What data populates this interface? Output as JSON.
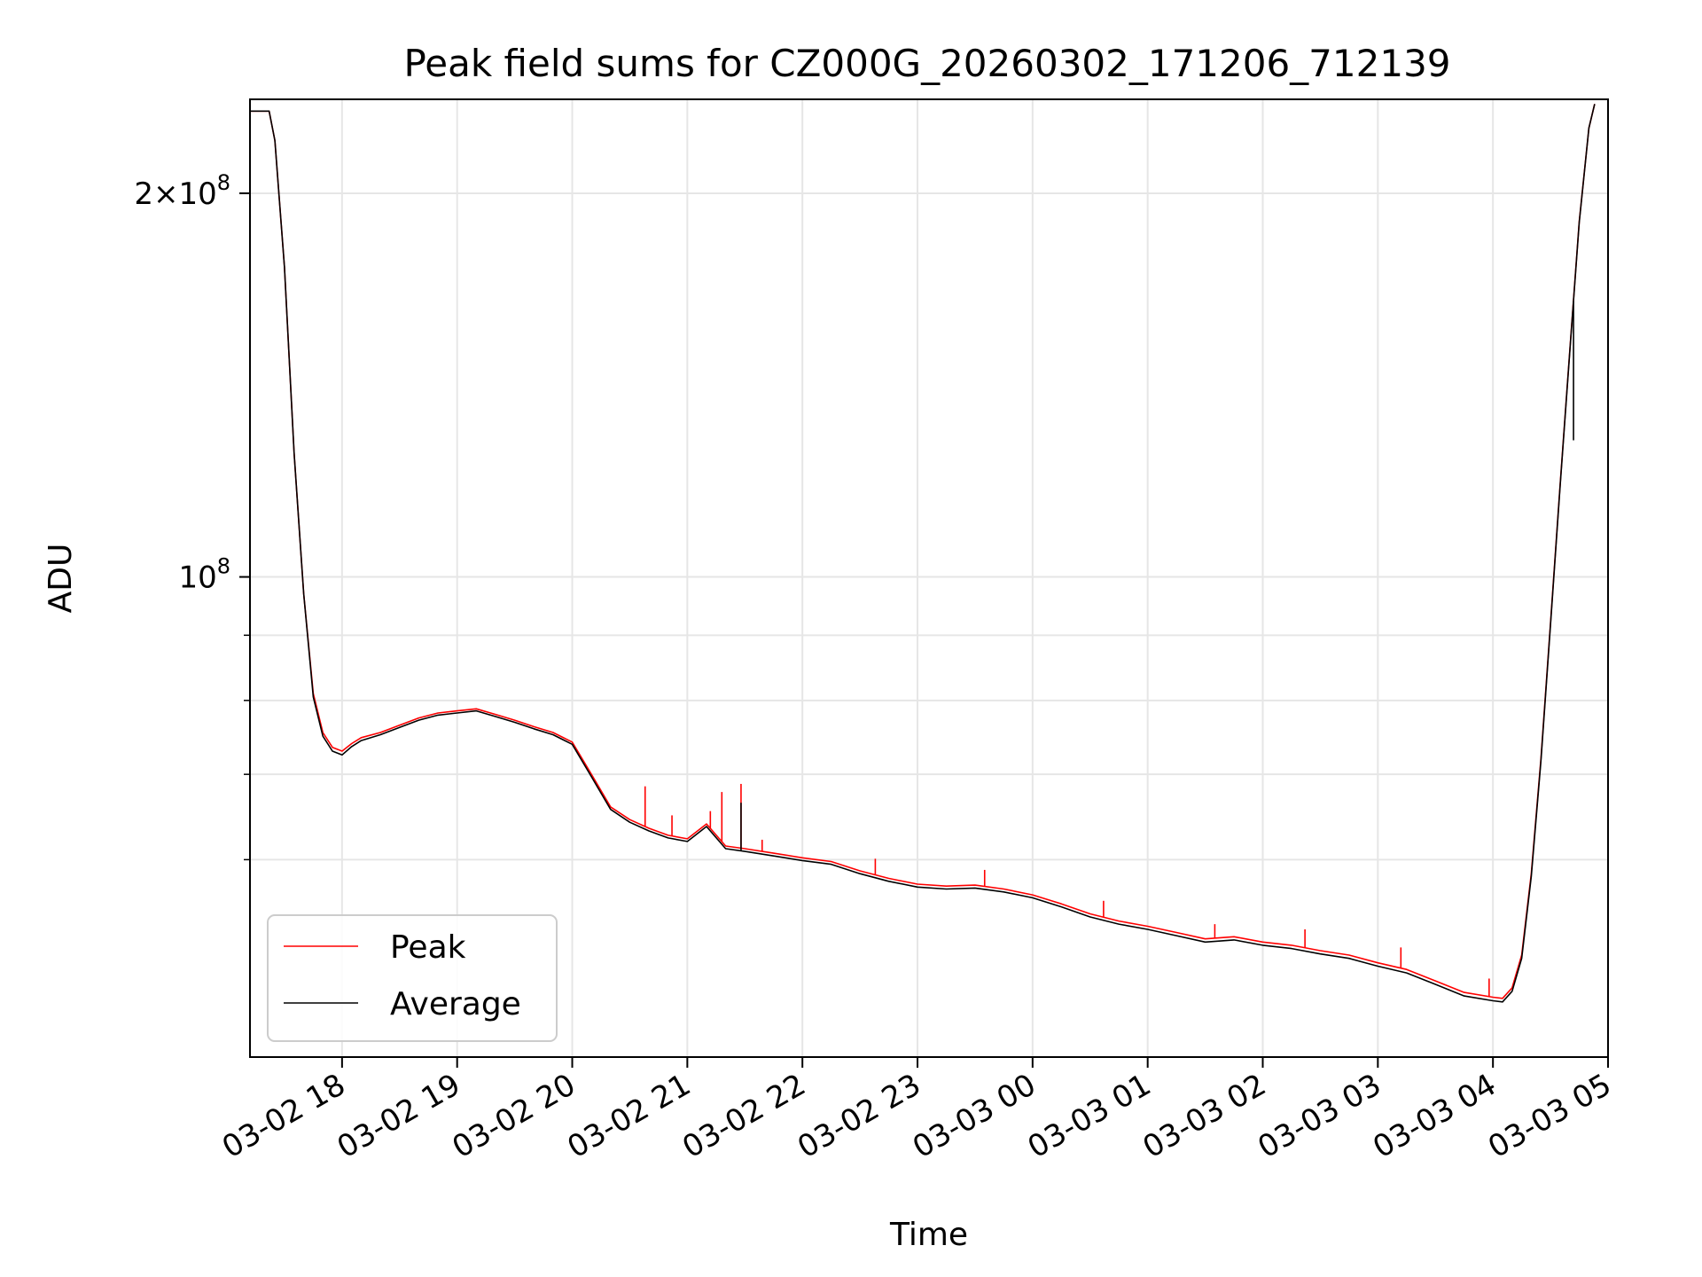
{
  "chart_data": {
    "type": "line",
    "title": "Peak field sums for CZ000G_20260302_171206_712139",
    "xlabel": "Time",
    "ylabel": "ADU",
    "yscale": "log",
    "xlim": [
      "03-02 17:12",
      "03-03 05:00"
    ],
    "ylim": [
      42000000,
      237000000
    ],
    "grid": true,
    "legend_position": "lower-left",
    "x_ticks": [
      "03-02 18",
      "03-02 19",
      "03-02 20",
      "03-02 21",
      "03-02 22",
      "03-02 23",
      "03-03 00",
      "03-03 01",
      "03-03 02",
      "03-03 03",
      "03-03 04",
      "03-03 05"
    ],
    "y_ticks": [
      {
        "value": 200000000,
        "label_main": "2×10",
        "label_exp": "8"
      },
      {
        "value": 100000000,
        "label_main": "10",
        "label_exp": "8"
      }
    ],
    "y_minor_ticks": [
      60000000,
      70000000,
      80000000,
      90000000
    ],
    "x": [
      "03-02 17:12",
      "03-02 17:22",
      "03-02 17:25",
      "03-02 17:30",
      "03-02 17:35",
      "03-02 17:40",
      "03-02 17:45",
      "03-02 17:50",
      "03-02 17:55",
      "03-02 18:00",
      "03-02 18:05",
      "03-02 18:10",
      "03-02 18:20",
      "03-02 18:30",
      "03-02 18:40",
      "03-02 18:50",
      "03-02 19:00",
      "03-02 19:10",
      "03-02 19:20",
      "03-02 19:30",
      "03-02 19:40",
      "03-02 19:50",
      "03-02 20:00",
      "03-02 20:10",
      "03-02 20:20",
      "03-02 20:30",
      "03-02 20:40",
      "03-02 20:50",
      "03-02 21:00",
      "03-02 21:10",
      "03-02 21:20",
      "03-02 21:30",
      "03-02 21:45",
      "03-02 22:00",
      "03-02 22:15",
      "03-02 22:30",
      "03-02 22:45",
      "03-02 23:00",
      "03-02 23:15",
      "03-02 23:30",
      "03-02 23:45",
      "03-03 00:00",
      "03-03 00:15",
      "03-03 00:30",
      "03-03 00:45",
      "03-03 01:00",
      "03-03 01:15",
      "03-03 01:30",
      "03-03 01:45",
      "03-03 02:00",
      "03-03 02:15",
      "03-03 02:30",
      "03-03 02:45",
      "03-03 03:00",
      "03-03 03:15",
      "03-03 03:30",
      "03-03 03:45",
      "03-03 04:00",
      "03-03 04:05",
      "03-03 04:10",
      "03-03 04:15",
      "03-03 04:20",
      "03-03 04:25",
      "03-03 04:30",
      "03-03 04:35",
      "03-03 04:40",
      "03-03 04:45",
      "03-03 04:50",
      "03-03 04:53"
    ],
    "series": [
      {
        "name": "Peak",
        "color": "#ff0000",
        "values": [
          232000000,
          232000000,
          220000000,
          175000000,
          125000000,
          97000000,
          81000000,
          75500000,
          73500000,
          73000000,
          74000000,
          74800000,
          75500000,
          76500000,
          77500000,
          78200000,
          78500000,
          78800000,
          78000000,
          77200000,
          76300000,
          75500000,
          74200000,
          70000000,
          66000000,
          64500000,
          63500000,
          62700000,
          62300000,
          64000000,
          61500000,
          61200000,
          60700000,
          60200000,
          59800000,
          58800000,
          58000000,
          57400000,
          57200000,
          57300000,
          56900000,
          56300000,
          55400000,
          54400000,
          53700000,
          53200000,
          52600000,
          52000000,
          52200000,
          51700000,
          51400000,
          50900000,
          50500000,
          49800000,
          49200000,
          48200000,
          47200000,
          46800000,
          46700000,
          47600000,
          50500000,
          58500000,
          72000000,
          92000000,
          118000000,
          150000000,
          190000000,
          225000000,
          235000000
        ]
      },
      {
        "name": "Average",
        "color": "#000000",
        "values": [
          232000000,
          232000000,
          220000000,
          175000000,
          125000000,
          97000000,
          80500000,
          75000000,
          73000000,
          72500000,
          73600000,
          74400000,
          75200000,
          76200000,
          77200000,
          77900000,
          78200000,
          78500000,
          77700000,
          76900000,
          76000000,
          75200000,
          73900000,
          69700000,
          65700000,
          64200000,
          63200000,
          62400000,
          62000000,
          63700000,
          61200000,
          60900000,
          60400000,
          59900000,
          59500000,
          58500000,
          57700000,
          57100000,
          56900000,
          57000000,
          56600000,
          56000000,
          55100000,
          54100000,
          53400000,
          52900000,
          52300000,
          51700000,
          51900000,
          51400000,
          51100000,
          50600000,
          50200000,
          49500000,
          48900000,
          47900000,
          46900000,
          46500000,
          46400000,
          47300000,
          50200000,
          58200000,
          71700000,
          91700000,
          117700000,
          149700000,
          189700000,
          225000000,
          235000000
        ]
      }
    ],
    "spikes": [
      {
        "series": "Peak",
        "x": "03-02 20:38",
        "value": 68500000
      },
      {
        "series": "Peak",
        "x": "03-02 20:52",
        "value": 65000000
      },
      {
        "series": "Peak",
        "x": "03-02 21:12",
        "value": 65500000
      },
      {
        "series": "Peak",
        "x": "03-02 21:18",
        "value": 67800000
      },
      {
        "series": "Peak",
        "x": "03-02 21:28",
        "value": 68800000
      },
      {
        "series": "Peak",
        "x": "03-02 21:39",
        "value": 62200000
      },
      {
        "series": "Peak",
        "x": "03-02 22:38",
        "value": 60100000
      },
      {
        "series": "Peak",
        "x": "03-02 23:35",
        "value": 58900000
      },
      {
        "series": "Peak",
        "x": "03-03 00:37",
        "value": 55700000
      },
      {
        "series": "Peak",
        "x": "03-03 01:35",
        "value": 53400000
      },
      {
        "series": "Peak",
        "x": "03-03 02:22",
        "value": 52900000
      },
      {
        "series": "Peak",
        "x": "03-03 03:12",
        "value": 51200000
      },
      {
        "series": "Peak",
        "x": "03-03 03:58",
        "value": 48400000
      },
      {
        "series": "Average",
        "x": "03-02 21:28",
        "value": 66500000
      },
      {
        "series": "Average",
        "x": "03-03 04:42",
        "value": 128000000
      }
    ]
  }
}
